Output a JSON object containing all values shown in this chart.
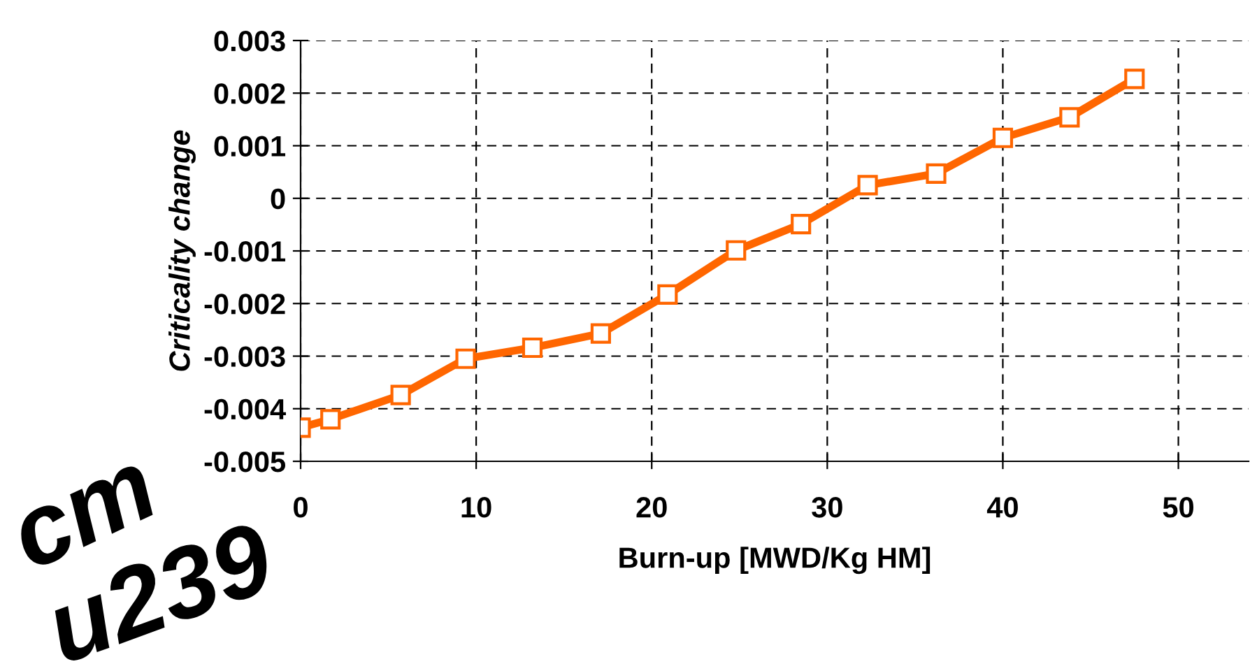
{
  "chart_data": {
    "type": "line",
    "xlabel": "Burn-up [MWD/Kg HM]",
    "ylabel": "Criticality change",
    "x": [
      0,
      1.7,
      5.7,
      9.4,
      13.2,
      17.1,
      20.9,
      24.8,
      28.5,
      32.3,
      36.2,
      40.0,
      43.8,
      47.5
    ],
    "series": [
      {
        "color": "#ff6600",
        "values": [
          -0.00436,
          -0.0042,
          -0.00374,
          -0.00305,
          -0.00284,
          -0.00257,
          -0.00183,
          -0.00099,
          -0.00049,
          0.00025,
          0.00047,
          0.00115,
          0.00154,
          0.00227
        ]
      }
    ],
    "xlim": [
      0,
      54
    ],
    "xticks": [
      0,
      10,
      20,
      30,
      40,
      50
    ],
    "ylim": [
      -0.005,
      0.003
    ],
    "yticks": [
      {
        "value": -0.005,
        "label": "-0.005"
      },
      {
        "value": -0.004,
        "label": "-0.004"
      },
      {
        "value": -0.003,
        "label": "-0.003"
      },
      {
        "value": -0.002,
        "label": "-0.002"
      },
      {
        "value": -0.001,
        "label": "-0.001"
      },
      {
        "value": 0,
        "label": "0"
      },
      {
        "value": 0.001,
        "label": "0.001"
      },
      {
        "value": 0.002,
        "label": "0.002"
      },
      {
        "value": 0.003,
        "label": "0.003"
      }
    ],
    "grid": true,
    "marker": "square",
    "line_style": "solid",
    "annotations": [
      "cm",
      "u239"
    ]
  }
}
